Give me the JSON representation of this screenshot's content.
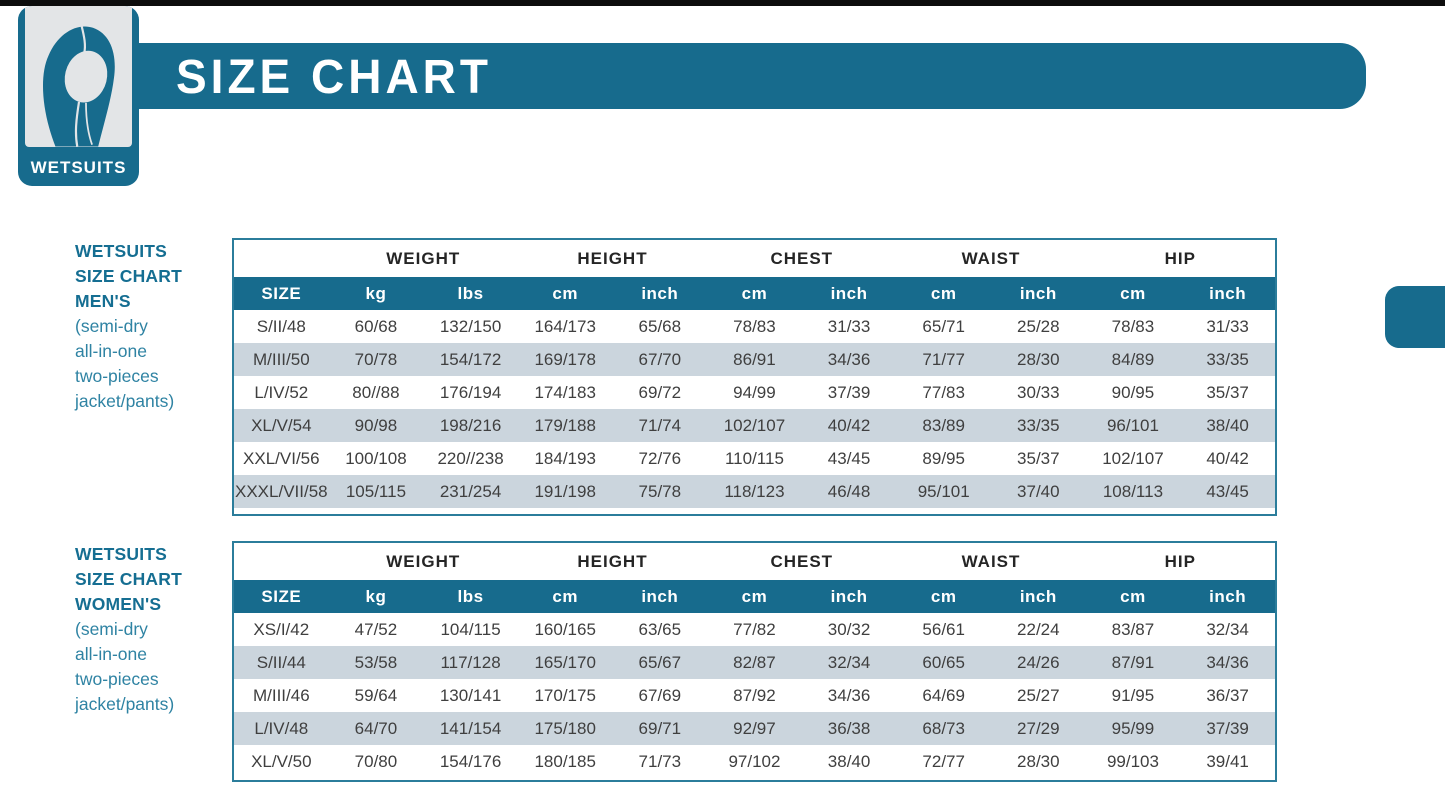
{
  "brand": {
    "label": "WETSUITS",
    "icon": "wetsuit-hood-icon"
  },
  "banner": {
    "title": "SIZE CHART"
  },
  "colors": {
    "teal": "#176b8d",
    "table_border": "#2b7d9b",
    "row_stripe": "#cbd5dd",
    "side_title_text": "#156e92",
    "side_subtitle_text": "#2f83a3",
    "header_text": "#252525",
    "cell_text": "#3f3f3f"
  },
  "sections": [
    {
      "id": "mens",
      "title_lines": [
        "WETSUITS",
        "SIZE CHART",
        "MEN'S"
      ],
      "subtitle_lines": [
        "(semi-dry",
        "all-in-one",
        "two-pieces",
        "jacket/pants)"
      ],
      "table": {
        "group_headers": [
          {
            "label": "",
            "span": 1
          },
          {
            "label": "WEIGHT",
            "span": 2
          },
          {
            "label": "HEIGHT",
            "span": 2
          },
          {
            "label": "CHEST",
            "span": 2
          },
          {
            "label": "WAIST",
            "span": 2
          },
          {
            "label": "HIP",
            "span": 2
          }
        ],
        "unit_headers": [
          "SIZE",
          "kg",
          "lbs",
          "cm",
          "inch",
          "cm",
          "inch",
          "cm",
          "inch",
          "cm",
          "inch"
        ],
        "rows": [
          [
            "S/II/48",
            "60/68",
            "132/150",
            "164/173",
            "65/68",
            "78/83",
            "31/33",
            "65/71",
            "25/28",
            "78/83",
            "31/33"
          ],
          [
            "M/III/50",
            "70/78",
            "154/172",
            "169/178",
            "67/70",
            "86/91",
            "34/36",
            "71/77",
            "28/30",
            "84/89",
            "33/35"
          ],
          [
            "L/IV/52",
            "80//88",
            "176/194",
            "174/183",
            "69/72",
            "94/99",
            "37/39",
            "77/83",
            "30/33",
            "90/95",
            "35/37"
          ],
          [
            "XL/V/54",
            "90/98",
            "198/216",
            "179/188",
            "71/74",
            "102/107",
            "40/42",
            "83/89",
            "33/35",
            "96/101",
            "38/40"
          ],
          [
            "XXL/VI/56",
            "100/108",
            "220//238",
            "184/193",
            "72/76",
            "110/115",
            "43/45",
            "89/95",
            "35/37",
            "102/107",
            "40/42"
          ],
          [
            "XXXL/VII/58",
            "105/115",
            "231/254",
            "191/198",
            "75/78",
            "118/123",
            "46/48",
            "95/101",
            "37/40",
            "108/113",
            "43/45"
          ]
        ]
      }
    },
    {
      "id": "womens",
      "title_lines": [
        "WETSUITS",
        "SIZE CHART",
        "WOMEN'S"
      ],
      "subtitle_lines": [
        "(semi-dry",
        "all-in-one",
        "two-pieces",
        "jacket/pants)"
      ],
      "table": {
        "group_headers": [
          {
            "label": "",
            "span": 1
          },
          {
            "label": "WEIGHT",
            "span": 2
          },
          {
            "label": "HEIGHT",
            "span": 2
          },
          {
            "label": "CHEST",
            "span": 2
          },
          {
            "label": "WAIST",
            "span": 2
          },
          {
            "label": "HIP",
            "span": 2
          }
        ],
        "unit_headers": [
          "SIZE",
          "kg",
          "lbs",
          "cm",
          "inch",
          "cm",
          "inch",
          "cm",
          "inch",
          "cm",
          "inch"
        ],
        "rows": [
          [
            "XS/I/42",
            "47/52",
            "104/115",
            "160/165",
            "63/65",
            "77/82",
            "30/32",
            "56/61",
            "22/24",
            "83/87",
            "32/34"
          ],
          [
            "S/II/44",
            "53/58",
            "117/128",
            "165/170",
            "65/67",
            "82/87",
            "32/34",
            "60/65",
            "24/26",
            "87/91",
            "34/36"
          ],
          [
            "M/III/46",
            "59/64",
            "130/141",
            "170/175",
            "67/69",
            "87/92",
            "34/36",
            "64/69",
            "25/27",
            "91/95",
            "36/37"
          ],
          [
            "L/IV/48",
            "64/70",
            "141/154",
            "175/180",
            "69/71",
            "92/97",
            "36/38",
            "68/73",
            "27/29",
            "95/99",
            "37/39"
          ],
          [
            "XL/V/50",
            "70/80",
            "154/176",
            "180/185",
            "71/73",
            "97/102",
            "38/40",
            "72/77",
            "28/30",
            "99/103",
            "39/41"
          ]
        ]
      }
    }
  ]
}
